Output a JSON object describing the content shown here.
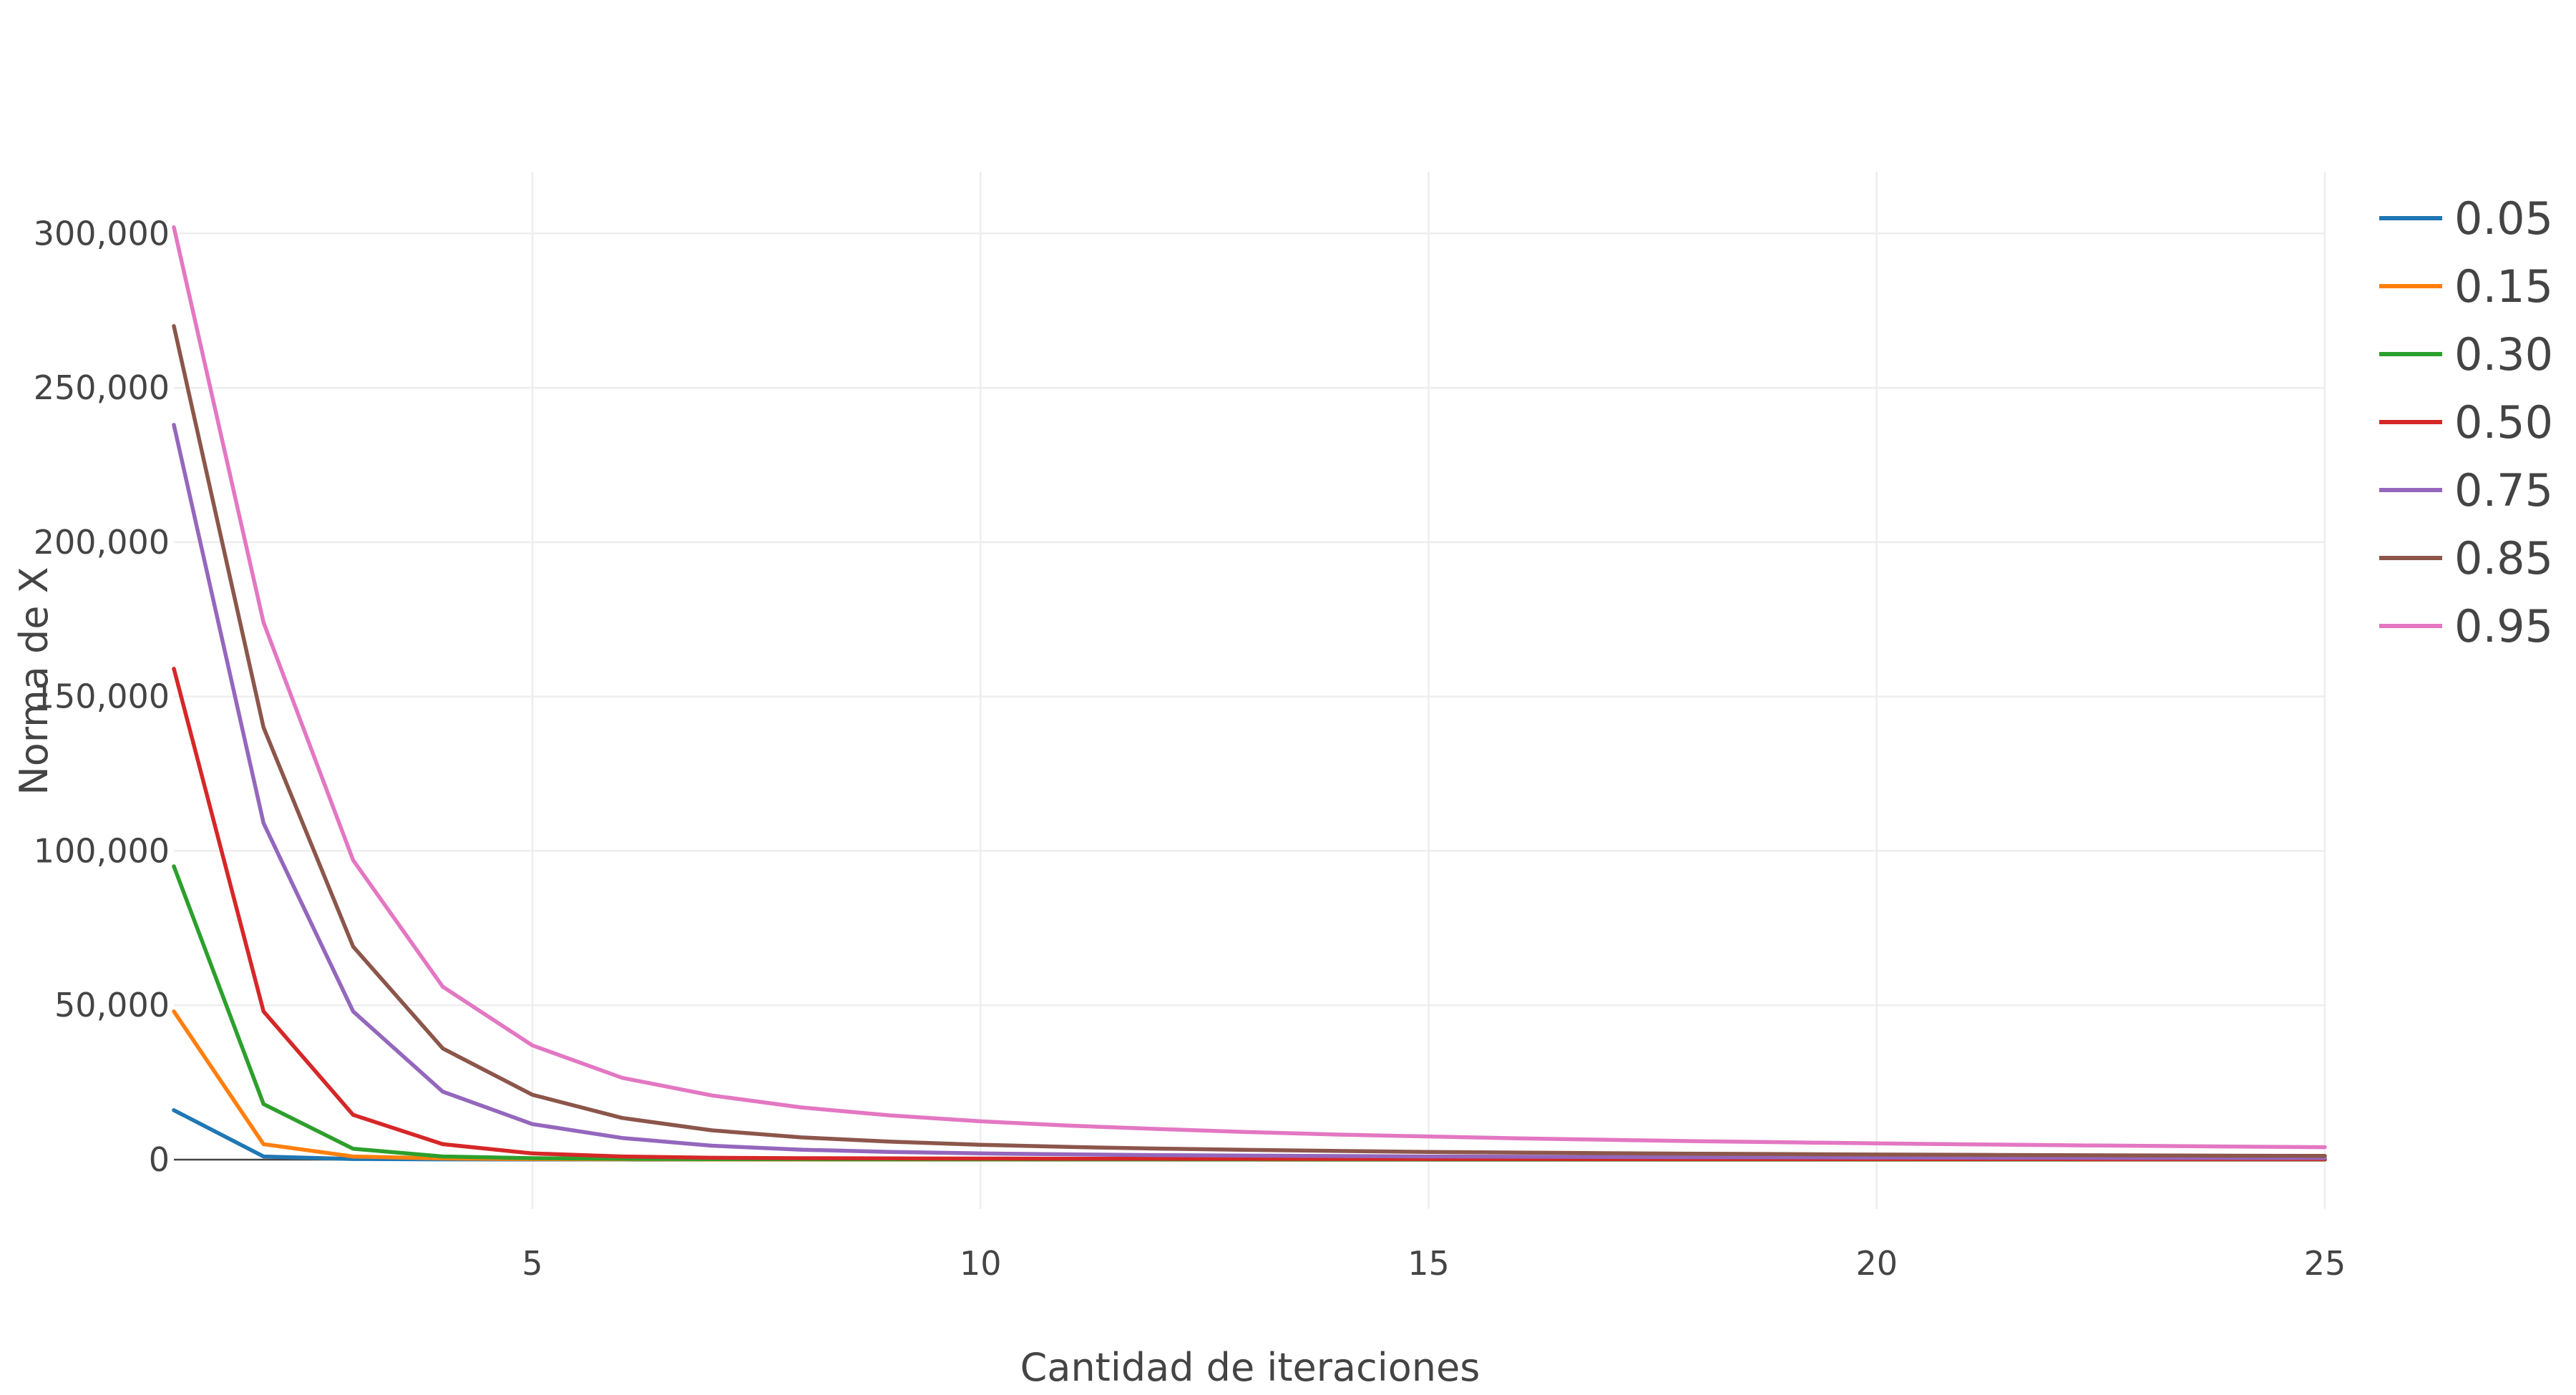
{
  "chart_data": {
    "type": "line",
    "title": "",
    "xlabel": "Cantidad de iteraciones",
    "ylabel": "Norma de X",
    "xlim": [
      1,
      25
    ],
    "ylim": [
      -16000,
      320000
    ],
    "grid": true,
    "legend_position": "top-right",
    "x_ticks": [
      5,
      10,
      15,
      20,
      25
    ],
    "x_tick_labels": [
      "5",
      "10",
      "15",
      "20",
      "25"
    ],
    "y_ticks": [
      0,
      50000,
      100000,
      150000,
      200000,
      250000,
      300000
    ],
    "y_tick_labels": [
      "0",
      "50,000",
      "100,000",
      "150,000",
      "200,000",
      "250,000",
      "300,000"
    ],
    "x": [
      1,
      2,
      3,
      4,
      5,
      6,
      7,
      8,
      9,
      10,
      11,
      12,
      13,
      14,
      15,
      16,
      17,
      18,
      19,
      20,
      21,
      22,
      23,
      24,
      25
    ],
    "series": [
      {
        "name": "0.05",
        "color": "#1f77b4",
        "values": [
          16000,
          1000,
          200,
          80,
          40,
          25,
          18,
          14,
          11,
          9,
          8,
          7,
          6,
          5.5,
          5,
          4.6,
          4.2,
          3.9,
          3.6,
          3.4,
          3.2,
          3,
          2.9,
          2.8,
          2.7
        ]
      },
      {
        "name": "0.15",
        "color": "#ff7f0e",
        "values": [
          48000,
          5000,
          1000,
          350,
          170,
          100,
          70,
          55,
          45,
          38,
          33,
          29,
          26,
          23,
          21,
          19,
          18,
          17,
          16,
          15,
          14,
          13,
          12.5,
          12,
          11.5
        ]
      },
      {
        "name": "0.30",
        "color": "#2ca02c",
        "values": [
          95000,
          18000,
          3500,
          1000,
          450,
          260,
          180,
          140,
          115,
          100,
          90,
          80,
          72,
          66,
          60,
          56,
          52,
          49,
          46,
          44,
          42,
          40,
          38,
          36,
          35
        ]
      },
      {
        "name": "0.50",
        "color": "#d62728",
        "values": [
          159000,
          48000,
          14500,
          5000,
          2000,
          1000,
          600,
          450,
          380,
          330,
          290,
          260,
          240,
          220,
          205,
          192,
          180,
          170,
          162,
          155,
          148,
          142,
          137,
          132,
          128
        ]
      },
      {
        "name": "0.75",
        "color": "#9467bd",
        "values": [
          238000,
          109000,
          48000,
          22000,
          11500,
          7000,
          4500,
          3200,
          2500,
          2000,
          1700,
          1450,
          1280,
          1140,
          1020,
          930,
          850,
          780,
          720,
          670,
          625,
          585,
          550,
          520,
          490
        ]
      },
      {
        "name": "0.85",
        "color": "#8c564b",
        "values": [
          270000,
          140000,
          69000,
          36000,
          21000,
          13500,
          9500,
          7200,
          5800,
          4800,
          4100,
          3550,
          3150,
          2800,
          2500,
          2280,
          2080,
          1910,
          1770,
          1640,
          1530,
          1430,
          1350,
          1270,
          1200
        ]
      },
      {
        "name": "0.95",
        "color": "#e377c2",
        "values": [
          302000,
          174000,
          97000,
          56000,
          37000,
          26500,
          20800,
          16900,
          14300,
          12400,
          11000,
          9900,
          8900,
          8100,
          7500,
          6900,
          6400,
          5950,
          5600,
          5250,
          4950,
          4680,
          4440,
          4220,
          4020
        ]
      }
    ]
  }
}
